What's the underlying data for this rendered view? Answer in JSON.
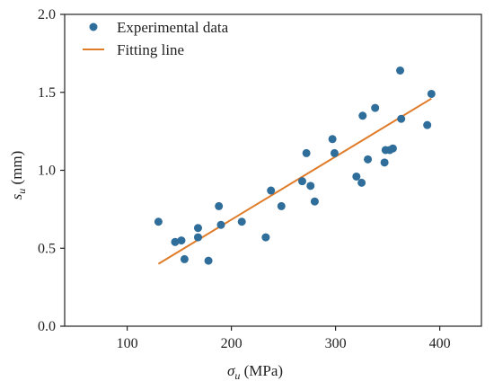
{
  "chart_data": {
    "type": "scatter",
    "title": "",
    "xlabel": {
      "symbol": "σ",
      "subscript": "u",
      "unit": " (MPa)"
    },
    "ylabel": {
      "symbol": "s",
      "subscript": "u",
      "unit": " (mm)"
    },
    "xlim": [
      40,
      440
    ],
    "ylim": [
      0.0,
      2.0
    ],
    "xticks": [
      100,
      200,
      300,
      400
    ],
    "yticks": [
      0.0,
      0.5,
      1.0,
      1.5,
      2.0
    ],
    "xtick_labels": [
      "100",
      "200",
      "300",
      "400"
    ],
    "ytick_labels": [
      "0.0",
      "0.5",
      "1.0",
      "1.5",
      "2.0"
    ],
    "grid": false,
    "legend_position": "top-left",
    "series": [
      {
        "name": "Experimental data",
        "kind": "scatter",
        "color": "#2f6d9a",
        "x": [
          130,
          146,
          152,
          155,
          168,
          168,
          178,
          188,
          190,
          210,
          233,
          238,
          248,
          268,
          272,
          276,
          280,
          297,
          299,
          320,
          325,
          326,
          331,
          338,
          347,
          348,
          352,
          355,
          363,
          388,
          392,
          362
        ],
        "y": [
          0.67,
          0.54,
          0.55,
          0.43,
          0.63,
          0.57,
          0.42,
          0.77,
          0.65,
          0.67,
          0.57,
          0.87,
          0.77,
          0.93,
          1.11,
          0.9,
          0.8,
          1.2,
          1.11,
          0.96,
          0.92,
          1.35,
          1.07,
          1.4,
          1.05,
          1.13,
          1.13,
          1.14,
          1.33,
          1.29,
          1.49,
          1.64
        ]
      },
      {
        "name": "Fitting line",
        "kind": "line",
        "color": "#e07b28",
        "x": [
          130,
          392
        ],
        "y": [
          0.4,
          1.46
        ]
      }
    ]
  }
}
